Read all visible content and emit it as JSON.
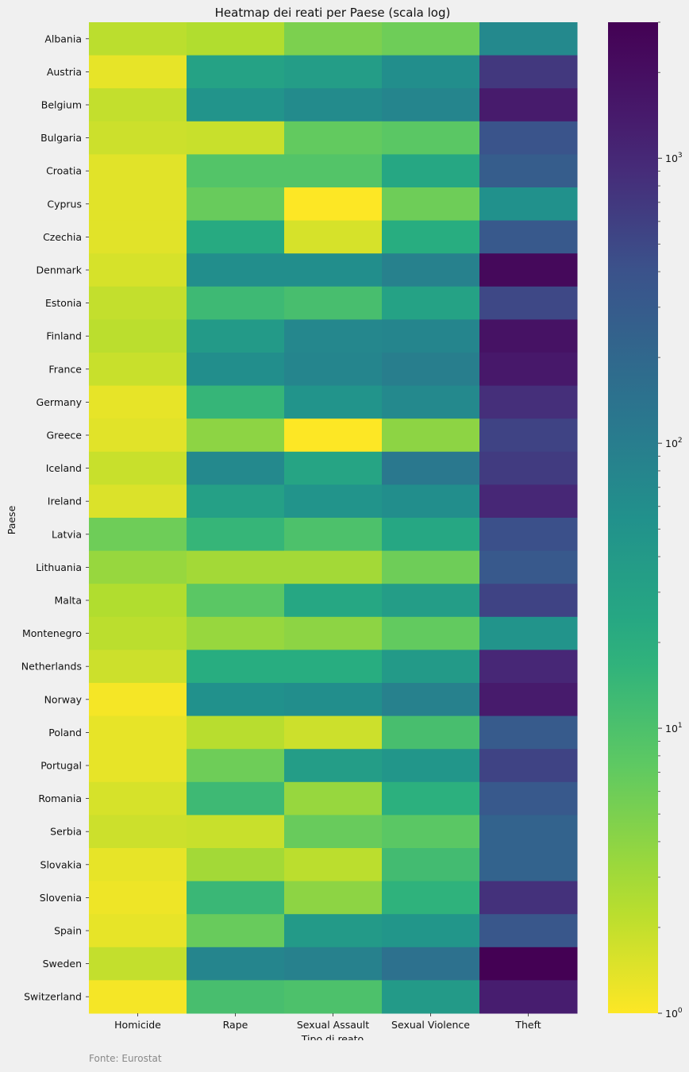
{
  "chart_data": {
    "type": "heatmap",
    "title": "Heatmap dei reati per Paese (scala log)",
    "xlabel": "Tipo di reato",
    "ylabel": "Paese",
    "colorscale": "viridis_r",
    "log_scale": true,
    "color_range": [
      1,
      3000
    ],
    "colorbar_ticks": [
      {
        "value": 1,
        "base": "10",
        "exp": "0"
      },
      {
        "value": 10,
        "base": "10",
        "exp": "1"
      },
      {
        "value": 100,
        "base": "10",
        "exp": "2"
      },
      {
        "value": 1000,
        "base": "10",
        "exp": "3"
      }
    ],
    "columns": [
      "Homicide",
      "Rape",
      "Sexual Assault",
      "Sexual Violence",
      "Theft"
    ],
    "rows": [
      "Albania",
      "Austria",
      "Belgium",
      "Bulgaria",
      "Croatia",
      "Cyprus",
      "Czechia",
      "Denmark",
      "Estonia",
      "Finland",
      "France",
      "Germany",
      "Greece",
      "Iceland",
      "Ireland",
      "Latvia",
      "Lithuania",
      "Malta",
      "Montenegro",
      "Netherlands",
      "Norway",
      "Poland",
      "Portugal",
      "Romania",
      "Serbia",
      "Slovakia",
      "Slovenia",
      "Spain",
      "Sweden",
      "Switzerland"
    ],
    "values": [
      [
        2.2,
        2.5,
        5.0,
        6.0,
        70
      ],
      [
        1.3,
        30,
        35,
        60,
        700
      ],
      [
        2.0,
        50,
        65,
        80,
        1400
      ],
      [
        1.8,
        1.9,
        7.0,
        8.0,
        380
      ],
      [
        1.4,
        9.0,
        9.0,
        25,
        280
      ],
      [
        1.4,
        6.5,
        1.0,
        6.0,
        55
      ],
      [
        1.4,
        22,
        1.6,
        20,
        320
      ],
      [
        1.6,
        60,
        60,
        90,
        2400
      ],
      [
        2.0,
        13,
        11,
        30,
        500
      ],
      [
        2.2,
        40,
        75,
        80,
        1800
      ],
      [
        1.9,
        60,
        80,
        100,
        1500
      ],
      [
        1.3,
        15,
        50,
        70,
        850
      ],
      [
        1.4,
        4.0,
        1.0,
        4.0,
        550
      ],
      [
        1.9,
        70,
        28,
        120,
        650
      ],
      [
        1.5,
        32,
        50,
        60,
        1000
      ],
      [
        6.0,
        15,
        10,
        25,
        420
      ],
      [
        3.5,
        3.0,
        3.0,
        6.0,
        320
      ],
      [
        2.5,
        8.0,
        25,
        35,
        550
      ],
      [
        2.2,
        3.5,
        4.0,
        7.0,
        50
      ],
      [
        1.8,
        20,
        20,
        40,
        1000
      ],
      [
        1.1,
        55,
        60,
        90,
        1400
      ],
      [
        1.3,
        2.3,
        1.8,
        11,
        300
      ],
      [
        1.3,
        6.0,
        35,
        45,
        550
      ],
      [
        1.6,
        13,
        3.5,
        18,
        320
      ],
      [
        1.8,
        1.9,
        6.5,
        8.0,
        230
      ],
      [
        1.3,
        3.0,
        2.2,
        12,
        230
      ],
      [
        1.2,
        14,
        4.0,
        17,
        800
      ],
      [
        1.3,
        6.5,
        40,
        45,
        350
      ],
      [
        2.0,
        80,
        90,
        150,
        3000
      ],
      [
        1.1,
        11,
        10,
        40,
        1300
      ]
    ]
  },
  "footer": {
    "source": "Fonte: Eurostat"
  }
}
